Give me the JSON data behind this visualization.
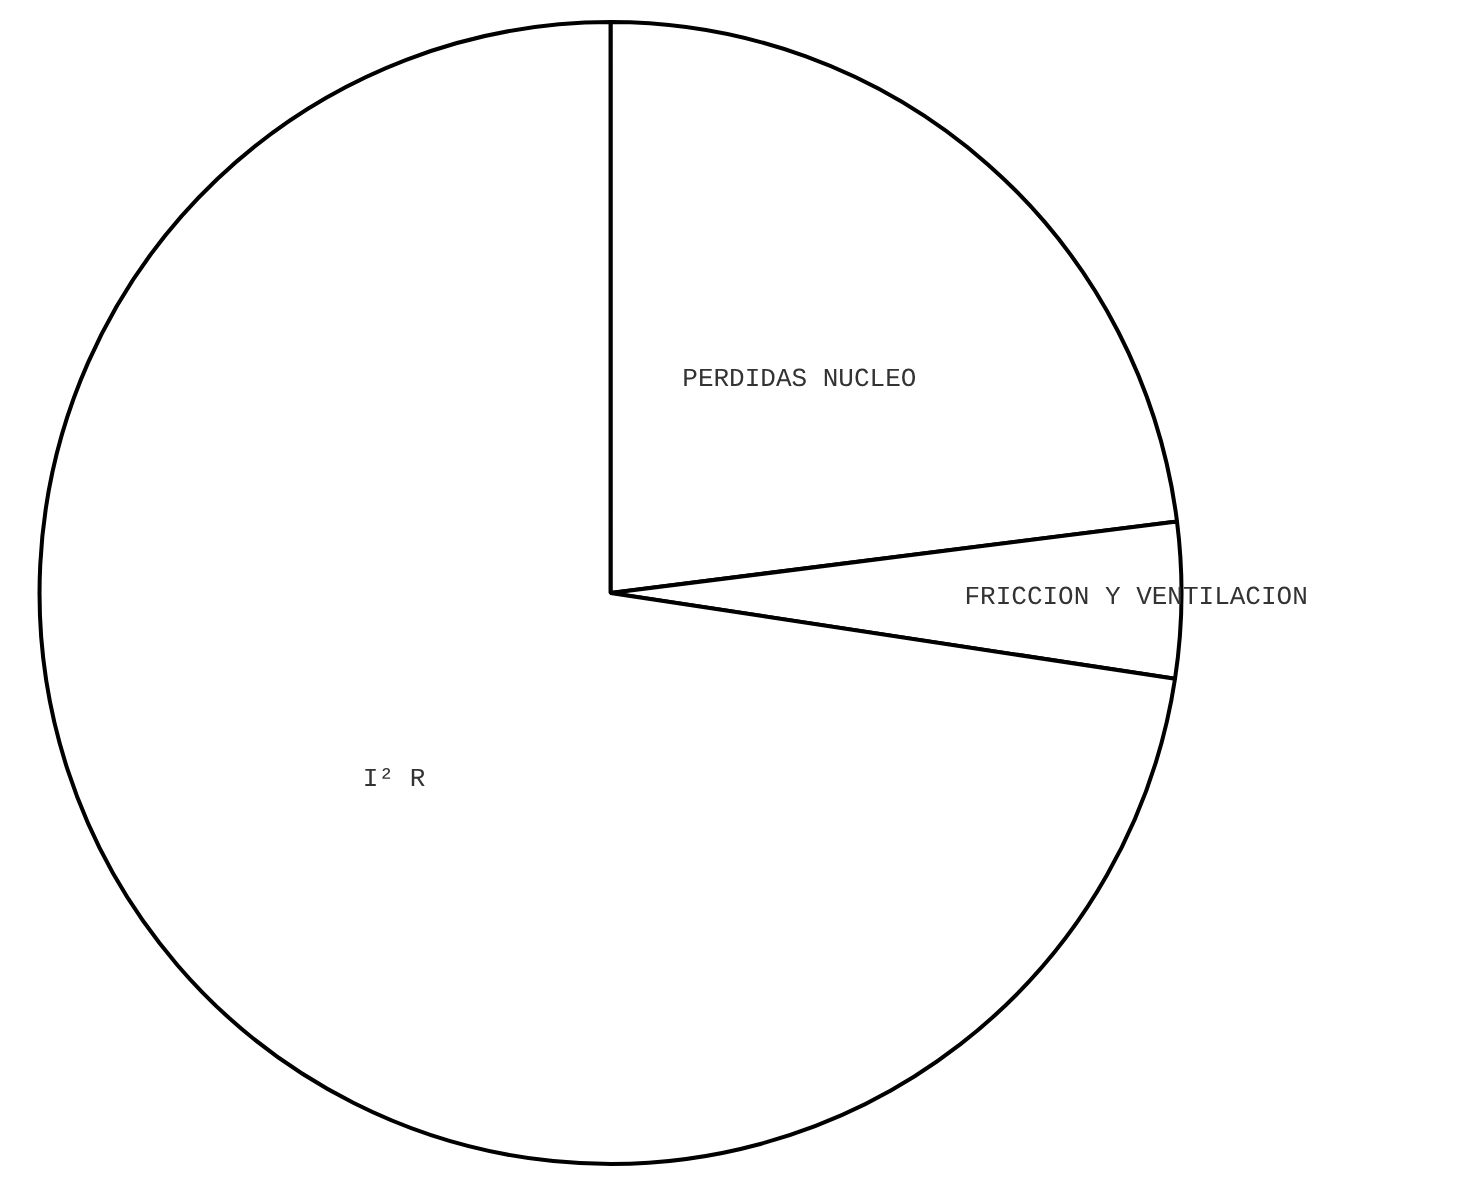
{
  "chart_data": {
    "type": "pie",
    "categories": [
      "PERDIDAS NUCLEO",
      "FRICCION Y VENTILACION",
      "I² R"
    ],
    "values": [
      23,
      4.4,
      72.6
    ],
    "colors": [
      "#ffffff",
      "#ffffff",
      "#ffffff"
    ]
  }
}
